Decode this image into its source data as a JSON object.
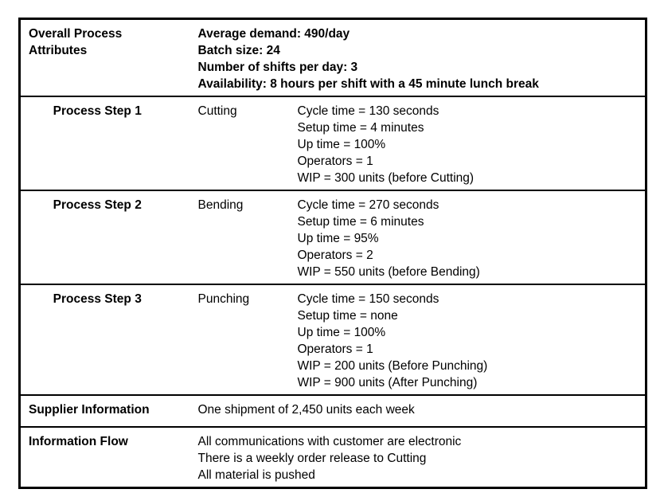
{
  "colors": {
    "border": "#000000",
    "text": "#000000",
    "background": "#ffffff"
  },
  "table": {
    "sections": [
      {
        "label": "Overall Process Attributes",
        "lines": [
          "Average demand: 490/day",
          "Batch size: 24",
          "Number of shifts per day: 3",
          "Availability: 8 hours per shift with a 45 minute lunch break"
        ]
      },
      {
        "label": "Process Step 1",
        "process": "Cutting",
        "details": [
          "Cycle time = 130 seconds",
          "Setup time = 4 minutes",
          "Up time = 100%",
          "Operators = 1",
          "WIP = 300 units (before Cutting)"
        ]
      },
      {
        "label": "Process Step 2",
        "process": "Bending",
        "details": [
          "Cycle time = 270 seconds",
          "Setup time = 6 minutes",
          "Up time = 95%",
          "Operators = 2",
          "WIP = 550 units (before Bending)"
        ]
      },
      {
        "label": "Process Step 3",
        "process": "Punching",
        "details": [
          "Cycle time = 150 seconds",
          "Setup time = none",
          "Up time = 100%",
          "Operators = 1",
          "WIP = 200 units (Before Punching)",
          "WIP = 900 units (After Punching)"
        ]
      },
      {
        "label": "Supplier Information",
        "lines": [
          "One shipment of 2,450 units each week"
        ]
      },
      {
        "label": "Information Flow",
        "lines": [
          "All communications with customer are electronic",
          "There is a weekly order release to Cutting",
          "All material is pushed"
        ]
      }
    ]
  }
}
